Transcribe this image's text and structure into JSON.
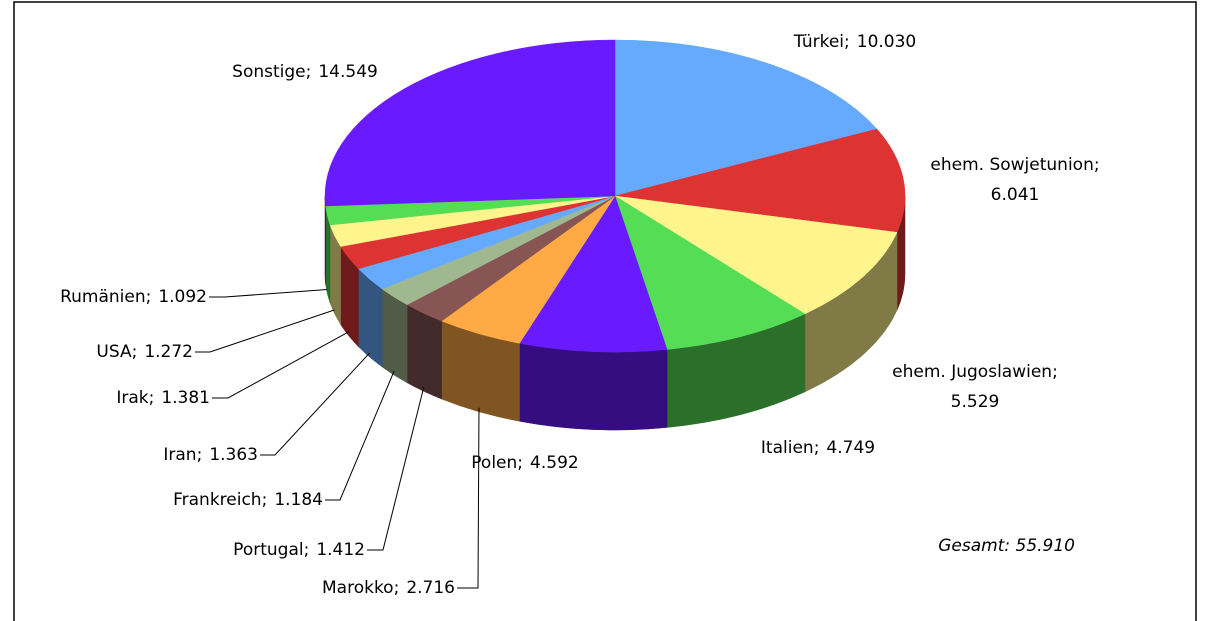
{
  "chart_data": {
    "type": "pie3d",
    "categories": [
      "Türkei",
      "ehem. Sowjetunion",
      "ehem. Jugoslawien",
      "Italien",
      "Polen",
      "Marokko",
      "Portugal",
      "Frankreich",
      "Iran",
      "Irak",
      "USA",
      "Rumänien",
      "Sonstige"
    ],
    "values": [
      10030,
      6041,
      5529,
      4749,
      4592,
      2716,
      1412,
      1184,
      1363,
      1381,
      1272,
      1092,
      14549
    ],
    "value_labels": [
      "10.030",
      "6.041",
      "5.529",
      "4.749",
      "4.592",
      "2.716",
      "1.412",
      "1.184",
      "1.363",
      "1.381",
      "1.272",
      "1.092",
      "14.549"
    ],
    "label_separator": ";",
    "colors": [
      "#66aaff",
      "#dd3333",
      "#fff58c",
      "#55dd55",
      "#6a1aff",
      "#ffaa44",
      "#885555",
      "#a0b890",
      "#66aaff",
      "#dd3333",
      "#fff58c",
      "#55dd55",
      "#6a1aff"
    ],
    "annotation": "Gesamt: 55.910"
  }
}
